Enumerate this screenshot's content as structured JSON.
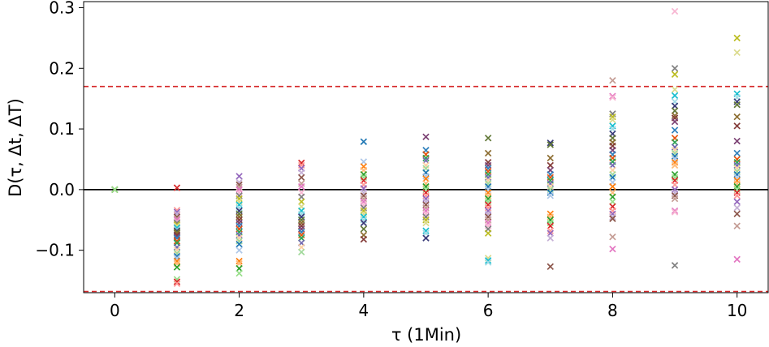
{
  "chart_data": {
    "type": "scatter",
    "marker": "x",
    "xlabel": "τ (1Min)",
    "ylabel": "D(τ, Δt, ΔT)",
    "xlim": [
      -0.5,
      10.5
    ],
    "ylim": [
      -0.17,
      0.31
    ],
    "xticks": [
      0,
      2,
      4,
      6,
      8,
      10
    ],
    "xtick_labels": [
      "0",
      "2",
      "4",
      "6",
      "8",
      "10"
    ],
    "yticks": [
      -0.1,
      0.0,
      0.1,
      0.2,
      0.3
    ],
    "ytick_labels": [
      "−0.1",
      "0.0",
      "0.1",
      "0.2",
      "0.3"
    ],
    "reference_lines": [
      {
        "y": 0.0,
        "color": "#000000",
        "style": "solid"
      },
      {
        "y": 0.17,
        "color": "#d62728",
        "style": "dashed"
      },
      {
        "y": -0.168,
        "color": "#d62728",
        "style": "dashed"
      }
    ],
    "colors": [
      "#1f77b4",
      "#aec7e8",
      "#ff7f0e",
      "#ffbb78",
      "#2ca02c",
      "#98df8a",
      "#d62728",
      "#ff9896",
      "#9467bd",
      "#c5b0d5",
      "#8c564b",
      "#c49c94",
      "#e377c2",
      "#f7b6d2",
      "#7f7f7f",
      "#bcbd22",
      "#dbdb8d",
      "#17becf",
      "#9edae5",
      "#393b79",
      "#637939",
      "#8c6d31",
      "#843c39",
      "#7b4173",
      "#3182bd",
      "#e6550d",
      "#31a354",
      "#756bb1",
      "#fdd0a2",
      "#a1d99b"
    ],
    "points": [
      {
        "x": 0,
        "y": [
          0.0,
          0.0,
          0.0,
          0.0,
          0.0,
          0.0
        ]
      },
      {
        "x": 1,
        "y": [
          0.003,
          -0.034,
          -0.037,
          -0.04,
          -0.045,
          -0.048,
          -0.05,
          -0.053,
          -0.055,
          -0.058,
          -0.06,
          -0.063,
          -0.066,
          -0.068,
          -0.07,
          -0.072,
          -0.075,
          -0.078,
          -0.08,
          -0.085,
          -0.088,
          -0.095,
          -0.1,
          -0.105,
          -0.11,
          -0.113,
          -0.118,
          -0.122,
          -0.128,
          -0.148,
          -0.152,
          -0.155
        ]
      },
      {
        "x": 2,
        "y": [
          0.022,
          0.012,
          0.008,
          0.004,
          0.0,
          -0.005,
          -0.01,
          -0.015,
          -0.02,
          -0.025,
          -0.03,
          -0.035,
          -0.04,
          -0.045,
          -0.05,
          -0.055,
          -0.06,
          -0.065,
          -0.07,
          -0.075,
          -0.08,
          -0.085,
          -0.09,
          -0.1,
          -0.118,
          -0.122,
          -0.13,
          -0.138
        ]
      },
      {
        "x": 3,
        "y": [
          0.044,
          0.04,
          0.035,
          0.028,
          0.02,
          0.01,
          0.005,
          -0.005,
          -0.012,
          -0.02,
          -0.028,
          -0.035,
          -0.04,
          -0.045,
          -0.05,
          -0.055,
          -0.06,
          -0.065,
          -0.07,
          -0.075,
          -0.08,
          -0.088,
          -0.095,
          -0.103
        ]
      },
      {
        "x": 4,
        "y": [
          0.079,
          0.046,
          0.038,
          0.032,
          0.025,
          0.02,
          0.015,
          0.008,
          0.002,
          -0.005,
          -0.01,
          -0.015,
          -0.02,
          -0.025,
          -0.03,
          -0.035,
          -0.04,
          -0.045,
          -0.05,
          -0.055,
          -0.065,
          -0.075,
          -0.082
        ]
      },
      {
        "x": 5,
        "y": [
          0.087,
          0.065,
          0.058,
          0.052,
          0.048,
          0.04,
          0.035,
          0.028,
          0.022,
          0.018,
          0.01,
          0.005,
          0.0,
          -0.005,
          -0.01,
          -0.015,
          -0.02,
          -0.025,
          -0.03,
          -0.035,
          -0.04,
          -0.045,
          -0.05,
          -0.055,
          -0.068,
          -0.072,
          -0.08
        ]
      },
      {
        "x": 6,
        "y": [
          0.085,
          0.06,
          0.045,
          0.04,
          0.035,
          0.03,
          0.025,
          0.02,
          0.015,
          0.01,
          0.005,
          0.0,
          -0.005,
          -0.01,
          -0.015,
          -0.02,
          -0.025,
          -0.03,
          -0.035,
          -0.04,
          -0.045,
          -0.05,
          -0.055,
          -0.06,
          -0.065,
          -0.072,
          -0.113,
          -0.117,
          -0.12
        ]
      },
      {
        "x": 7,
        "y": [
          0.077,
          0.074,
          0.052,
          0.04,
          0.032,
          0.025,
          0.02,
          0.015,
          0.01,
          0.005,
          0.0,
          -0.005,
          -0.01,
          -0.04,
          -0.045,
          -0.05,
          -0.055,
          -0.06,
          -0.068,
          -0.072,
          -0.08,
          -0.127
        ]
      },
      {
        "x": 8,
        "y": [
          0.18,
          0.154,
          0.152,
          0.125,
          0.12,
          0.115,
          0.105,
          0.1,
          0.092,
          0.085,
          0.078,
          0.072,
          0.065,
          0.058,
          0.052,
          0.046,
          0.04,
          0.032,
          0.025,
          0.02,
          0.012,
          0.005,
          -0.005,
          -0.012,
          -0.02,
          -0.028,
          -0.035,
          -0.04,
          -0.045,
          -0.048,
          -0.078,
          -0.098
        ]
      },
      {
        "x": 9,
        "y": [
          0.294,
          0.2,
          0.19,
          0.165,
          0.155,
          0.145,
          0.138,
          0.13,
          0.122,
          0.118,
          0.112,
          0.098,
          0.085,
          0.078,
          0.07,
          0.065,
          0.06,
          0.055,
          0.05,
          0.045,
          0.04,
          0.025,
          0.02,
          0.015,
          0.008,
          0.0,
          -0.005,
          -0.01,
          -0.015,
          -0.035,
          -0.037,
          -0.125
        ]
      },
      {
        "x": 10,
        "y": [
          0.25,
          0.226,
          0.158,
          0.152,
          0.145,
          0.14,
          0.12,
          0.105,
          0.08,
          0.06,
          0.05,
          0.045,
          0.04,
          0.035,
          0.03,
          0.025,
          0.02,
          0.015,
          0.01,
          0.005,
          0.0,
          -0.005,
          -0.01,
          -0.02,
          -0.03,
          -0.04,
          -0.06,
          -0.115
        ]
      }
    ]
  }
}
